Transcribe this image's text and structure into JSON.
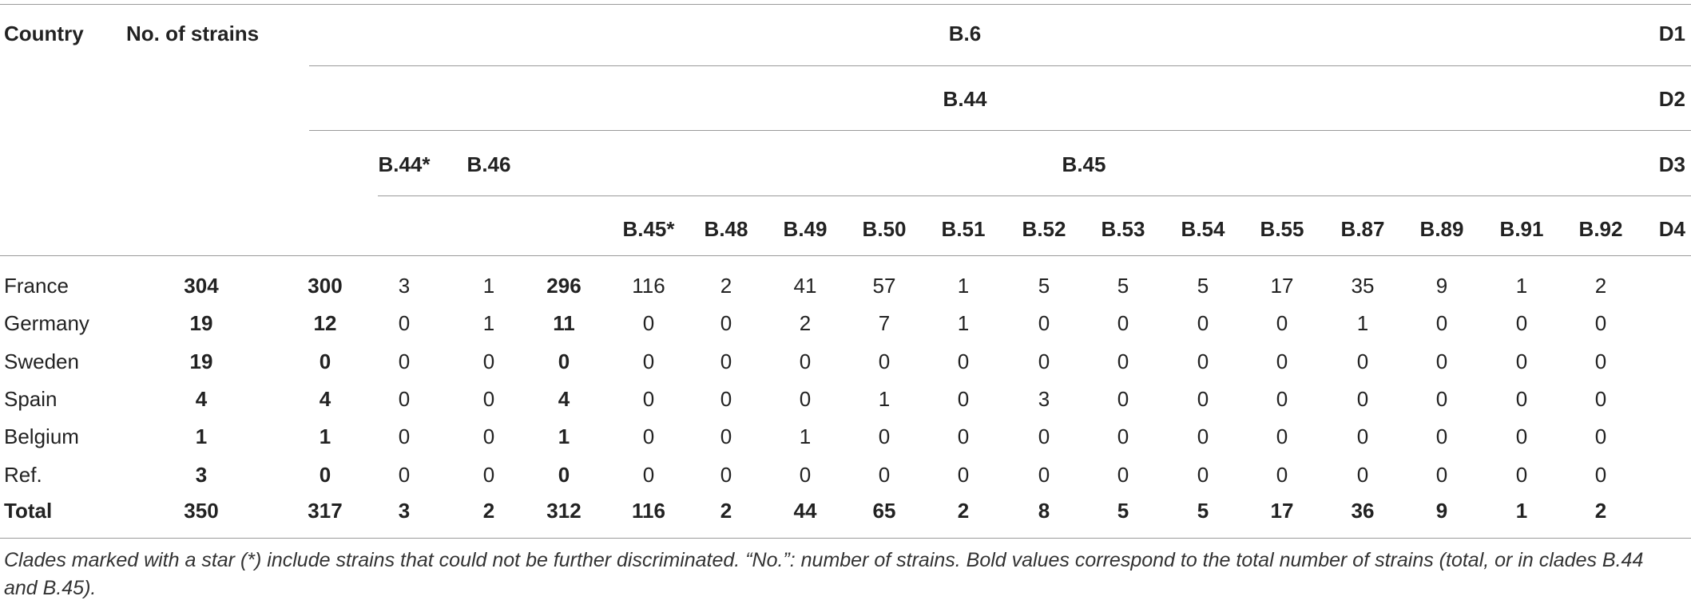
{
  "header": {
    "country": "Country",
    "no_strains": "No. of strains",
    "d1_label": "D1",
    "d2_label": "D2",
    "d3_label": "D3",
    "d4_label": "D4",
    "b6": "B.6",
    "b44": "B.44",
    "b44_star": "B.44*",
    "b46": "B.46",
    "b45": "B.45",
    "d4_columns": [
      "B.45*",
      "B.48",
      "B.49",
      "B.50",
      "B.51",
      "B.52",
      "B.53",
      "B.54",
      "B.55",
      "B.87",
      "B.89",
      "B.91",
      "B.92"
    ]
  },
  "rows": [
    {
      "country": "France",
      "values": [
        "304",
        "300",
        "3",
        "1",
        "296",
        "116",
        "2",
        "41",
        "57",
        "1",
        "5",
        "5",
        "5",
        "17",
        "35",
        "9",
        "1",
        "2"
      ]
    },
    {
      "country": "Germany",
      "values": [
        "19",
        "12",
        "0",
        "1",
        "11",
        "0",
        "0",
        "2",
        "7",
        "1",
        "0",
        "0",
        "0",
        "0",
        "1",
        "0",
        "0",
        "0"
      ]
    },
    {
      "country": "Sweden",
      "values": [
        "19",
        "0",
        "0",
        "0",
        "0",
        "0",
        "0",
        "0",
        "0",
        "0",
        "0",
        "0",
        "0",
        "0",
        "0",
        "0",
        "0",
        "0"
      ]
    },
    {
      "country": "Spain",
      "values": [
        "4",
        "4",
        "0",
        "0",
        "4",
        "0",
        "0",
        "0",
        "1",
        "0",
        "3",
        "0",
        "0",
        "0",
        "0",
        "0",
        "0",
        "0"
      ]
    },
    {
      "country": "Belgium",
      "values": [
        "1",
        "1",
        "0",
        "0",
        "1",
        "0",
        "0",
        "1",
        "0",
        "0",
        "0",
        "0",
        "0",
        "0",
        "0",
        "0",
        "0",
        "0"
      ]
    },
    {
      "country": "Ref.",
      "values": [
        "3",
        "0",
        "0",
        "0",
        "0",
        "0",
        "0",
        "0",
        "0",
        "0",
        "0",
        "0",
        "0",
        "0",
        "0",
        "0",
        "0",
        "0"
      ]
    }
  ],
  "total": {
    "label": "Total",
    "values": [
      "350",
      "317",
      "3",
      "2",
      "312",
      "116",
      "2",
      "44",
      "65",
      "2",
      "8",
      "5",
      "5",
      "17",
      "36",
      "9",
      "1",
      "2"
    ]
  },
  "caption": "Clades marked with a star (*) include strains that could not be further discriminated. “No.”: number of strains. Bold values correspond to the total number of strains (total, or in clades B.44 and B.45)."
}
